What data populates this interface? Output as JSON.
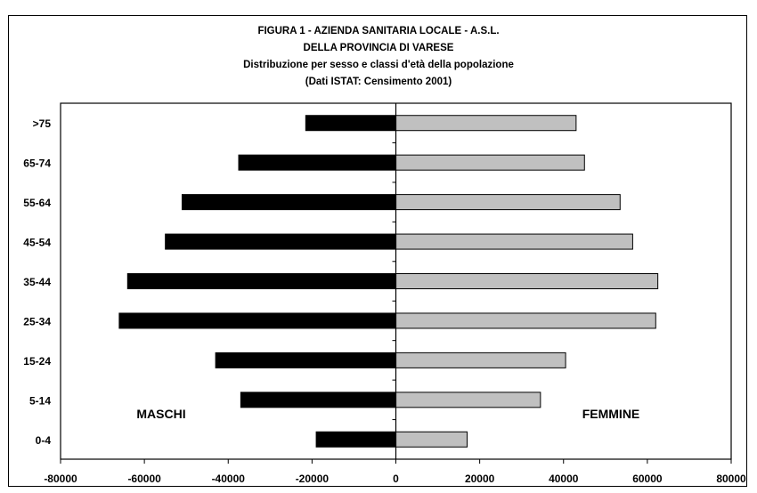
{
  "chart_data": {
    "type": "bar",
    "orientation": "horizontal",
    "title_lines": [
      "FIGURA 1 - AZIENDA SANITARIA LOCALE - A.S.L.",
      "DELLA PROVINCIA DI VARESE",
      "Distribuzione per sesso e classi d'età della popolazione",
      "(Dati ISTAT: Censimento 2001)"
    ],
    "categories": [
      "0-4",
      "5-14",
      "15-24",
      "25-34",
      "35-44",
      "45-54",
      "55-64",
      "65-74",
      ">75"
    ],
    "series": [
      {
        "name": "MASCHI",
        "values": [
          -19000,
          -37000,
          -43000,
          -66000,
          -64000,
          -55000,
          -51000,
          -37500,
          -21500
        ],
        "color": "#000000"
      },
      {
        "name": "FEMMINE",
        "values": [
          17000,
          34500,
          40500,
          62000,
          62500,
          56500,
          53500,
          45000,
          43000
        ],
        "color": "#c0c0c0"
      }
    ],
    "xlim": [
      -80000,
      80000
    ],
    "xticks": [
      -80000,
      -60000,
      -40000,
      -20000,
      0,
      20000,
      40000,
      60000,
      80000
    ],
    "xtick_labels": [
      "-80000",
      "-60000",
      "-40000",
      "-20000",
      "0",
      "20000",
      "40000",
      "60000",
      "80000"
    ],
    "xlabel": "",
    "ylabel": "",
    "grid": false
  }
}
